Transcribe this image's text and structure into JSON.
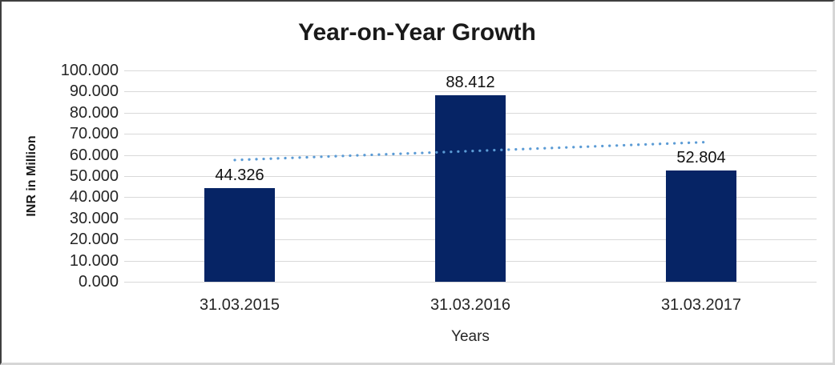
{
  "chart_data": {
    "type": "bar",
    "title": "Year-on-Year Growth",
    "xlabel": "Years",
    "ylabel": "INR in Million",
    "categories": [
      "31.03.2015",
      "31.03.2016",
      "31.03.2017"
    ],
    "values": [
      44.326,
      88.412,
      52.804
    ],
    "data_labels": [
      "44.326",
      "88.412",
      "52.804"
    ],
    "ylim": [
      0,
      100
    ],
    "ytick_step": 10,
    "ytick_labels": [
      "100.000",
      "90.000",
      "80.000",
      "70.000",
      "60.000",
      "50.000",
      "40.000",
      "30.000",
      "20.000",
      "10.000",
      "0.000"
    ],
    "grid": "horizontal",
    "legend": "none",
    "colors": {
      "bar": "#062465",
      "trendline": "#5B9BD5",
      "gridline": "#D9D9D9",
      "text": "#262626"
    },
    "trendline": {
      "type": "linear",
      "style": "dotted",
      "color": "#5B9BD5",
      "start_value": 57.6,
      "end_value": 66.1
    }
  }
}
